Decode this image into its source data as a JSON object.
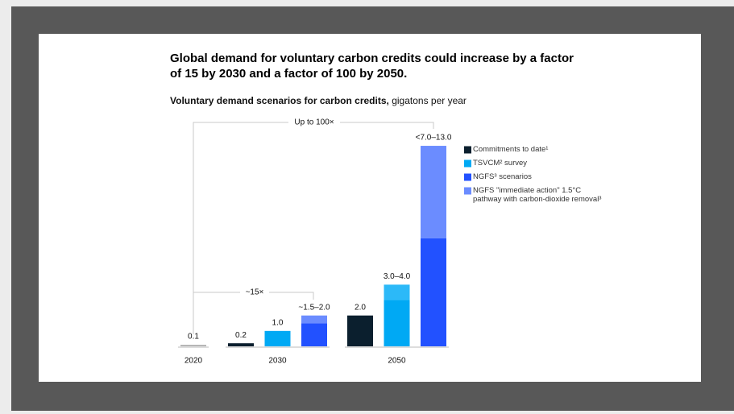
{
  "chart_data": {
    "type": "bar",
    "title": "Global demand for voluntary carbon credits could increase by a factor of 15 by 2030 and a factor of 100 by 2050.",
    "subtitle": "Voluntary demand scenarios for carbon credits,",
    "unit": "gigatons per year",
    "annotations": [
      "Up to 100×",
      "~15×"
    ],
    "series": [
      {
        "name": "Commitments to date¹",
        "color": "#0b1f2e"
      },
      {
        "name": "TSVCM² survey",
        "color": "#00a9f4"
      },
      {
        "name": "NGFS³ scenarios",
        "color": "#2251ff"
      },
      {
        "name": "NGFS \"immediate action\" 1.5°C pathway with carbon-dioxide removal³",
        "color": "#6b8cff"
      }
    ],
    "groups": [
      {
        "label": "2020",
        "bars": [
          {
            "segments": [
              {
                "value": 0.1,
                "color": "#b3b3b3"
              }
            ],
            "value_label": "0.1"
          }
        ]
      },
      {
        "label": "2030",
        "bars": [
          {
            "segments": [
              {
                "value": 0.2,
                "color": "#0b1f2e"
              }
            ],
            "value_label": "0.2"
          },
          {
            "segments": [
              {
                "value": 1.0,
                "color": "#00a9f4"
              }
            ],
            "value_label": "1.0"
          },
          {
            "segments": [
              {
                "value": 1.5,
                "color": "#2251ff"
              },
              {
                "value": 0.5,
                "color": "#6b8cff"
              }
            ],
            "value_label": "~1.5–2.0"
          }
        ]
      },
      {
        "label": "2050",
        "bars": [
          {
            "segments": [
              {
                "value": 2.0,
                "color": "#0b1f2e"
              }
            ],
            "value_label": "2.0"
          },
          {
            "segments": [
              {
                "value": 3.0,
                "color": "#00a9f4"
              },
              {
                "value": 1.0,
                "color": "#2cb9f8"
              }
            ],
            "value_label": "3.0–4.0"
          },
          {
            "segments": [
              {
                "value": 7.0,
                "color": "#2251ff"
              },
              {
                "value": 6.0,
                "color": "#6b8cff"
              }
            ],
            "value_label": "<7.0–13.0"
          }
        ]
      }
    ]
  }
}
